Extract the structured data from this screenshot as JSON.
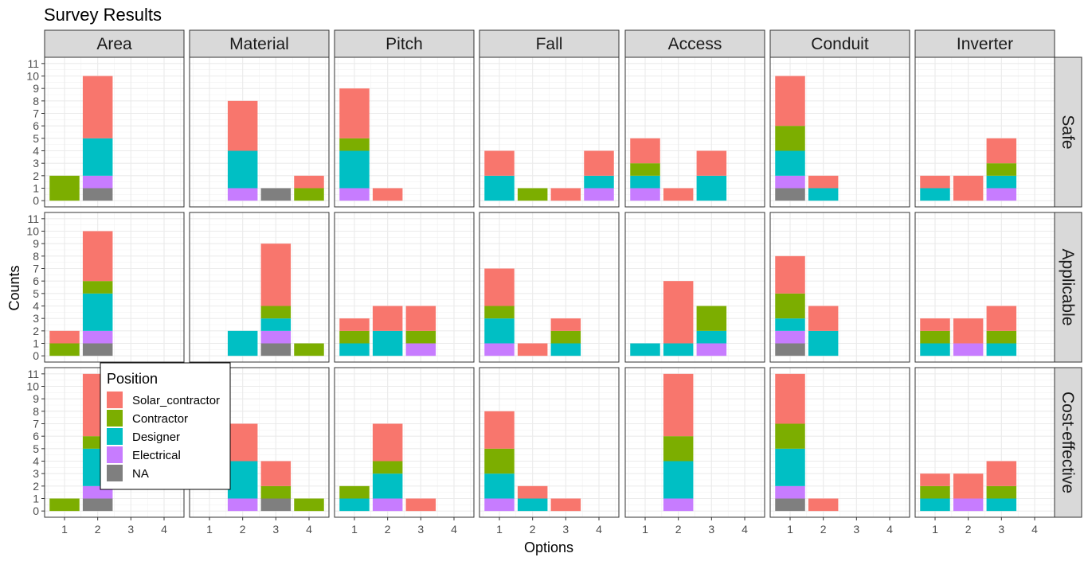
{
  "chart_data": {
    "type": "bar",
    "stacked": true,
    "title": "Survey Results",
    "xlabel": "Options",
    "ylabel": "Counts",
    "x_ticks": [
      "1",
      "2",
      "3",
      "4"
    ],
    "y_ticks": [
      "0",
      "1",
      "2",
      "3",
      "4",
      "5",
      "6",
      "7",
      "8",
      "9",
      "10",
      "11"
    ],
    "ylim": [
      0,
      11.5
    ],
    "grid": true,
    "columns": [
      "Area",
      "Material",
      "Pitch",
      "Fall",
      "Access",
      "Conduit",
      "Inverter"
    ],
    "rows": [
      "Safe",
      "Applicable",
      "Cost-effective"
    ],
    "legend": {
      "title": "Position",
      "placement": "inside-bottom-left",
      "items": [
        {
          "name": "Solar_contractor",
          "color": "#F8766D"
        },
        {
          "name": "Contractor",
          "color": "#7CAE00"
        },
        {
          "name": "Designer",
          "color": "#00BFC4"
        },
        {
          "name": "Electrical",
          "color": "#C77CFF"
        },
        {
          "name": "NA",
          "color": "#7F7F7F"
        }
      ]
    },
    "stack_order_bottom_to_top": [
      "NA",
      "Electrical",
      "Designer",
      "Contractor",
      "Solar_contractor"
    ],
    "panels": {
      "Safe": {
        "Area": [
          {
            "x": 1,
            "NA": 0,
            "Electrical": 0,
            "Designer": 0,
            "Contractor": 2,
            "Solar_contractor": 0
          },
          {
            "x": 2,
            "NA": 1,
            "Electrical": 1,
            "Designer": 3,
            "Contractor": 0,
            "Solar_contractor": 5
          }
        ],
        "Material": [
          {
            "x": 2,
            "NA": 0,
            "Electrical": 1,
            "Designer": 3,
            "Contractor": 0,
            "Solar_contractor": 4
          },
          {
            "x": 3,
            "NA": 1,
            "Electrical": 0,
            "Designer": 0,
            "Contractor": 0,
            "Solar_contractor": 0
          },
          {
            "x": 4,
            "NA": 0,
            "Electrical": 0,
            "Designer": 0,
            "Contractor": 1,
            "Solar_contractor": 1
          }
        ],
        "Pitch": [
          {
            "x": 1,
            "NA": 0,
            "Electrical": 1,
            "Designer": 3,
            "Contractor": 1,
            "Solar_contractor": 4
          },
          {
            "x": 2,
            "NA": 0,
            "Electrical": 0,
            "Designer": 0,
            "Contractor": 0,
            "Solar_contractor": 1
          }
        ],
        "Fall": [
          {
            "x": 1,
            "NA": 0,
            "Electrical": 0,
            "Designer": 2,
            "Contractor": 0,
            "Solar_contractor": 2
          },
          {
            "x": 2,
            "NA": 0,
            "Electrical": 0,
            "Designer": 0,
            "Contractor": 1,
            "Solar_contractor": 0
          },
          {
            "x": 3,
            "NA": 0,
            "Electrical": 0,
            "Designer": 0,
            "Contractor": 0,
            "Solar_contractor": 1
          },
          {
            "x": 4,
            "NA": 0,
            "Electrical": 1,
            "Designer": 1,
            "Contractor": 0,
            "Solar_contractor": 2
          }
        ],
        "Access": [
          {
            "x": 1,
            "NA": 0,
            "Electrical": 1,
            "Designer": 1,
            "Contractor": 1,
            "Solar_contractor": 2
          },
          {
            "x": 2,
            "NA": 0,
            "Electrical": 0,
            "Designer": 0,
            "Contractor": 0,
            "Solar_contractor": 1
          },
          {
            "x": 3,
            "NA": 0,
            "Electrical": 0,
            "Designer": 2,
            "Contractor": 0,
            "Solar_contractor": 2
          }
        ],
        "Conduit": [
          {
            "x": 1,
            "NA": 1,
            "Electrical": 1,
            "Designer": 2,
            "Contractor": 2,
            "Solar_contractor": 4
          },
          {
            "x": 2,
            "NA": 0,
            "Electrical": 0,
            "Designer": 1,
            "Contractor": 0,
            "Solar_contractor": 1
          }
        ],
        "Inverter": [
          {
            "x": 1,
            "NA": 0,
            "Electrical": 0,
            "Designer": 1,
            "Contractor": 0,
            "Solar_contractor": 1
          },
          {
            "x": 2,
            "NA": 0,
            "Electrical": 0,
            "Designer": 0,
            "Contractor": 0,
            "Solar_contractor": 2
          },
          {
            "x": 3,
            "NA": 0,
            "Electrical": 1,
            "Designer": 1,
            "Contractor": 1,
            "Solar_contractor": 2
          }
        ]
      },
      "Applicable": {
        "Area": [
          {
            "x": 1,
            "NA": 0,
            "Electrical": 0,
            "Designer": 0,
            "Contractor": 1,
            "Solar_contractor": 1
          },
          {
            "x": 2,
            "NA": 1,
            "Electrical": 1,
            "Designer": 3,
            "Contractor": 1,
            "Solar_contractor": 4
          }
        ],
        "Material": [
          {
            "x": 2,
            "NA": 0,
            "Electrical": 0,
            "Designer": 2,
            "Contractor": 0,
            "Solar_contractor": 0
          },
          {
            "x": 3,
            "NA": 1,
            "Electrical": 1,
            "Designer": 1,
            "Contractor": 1,
            "Solar_contractor": 5
          },
          {
            "x": 4,
            "NA": 0,
            "Electrical": 0,
            "Designer": 0,
            "Contractor": 1,
            "Solar_contractor": 0
          }
        ],
        "Pitch": [
          {
            "x": 1,
            "NA": 0,
            "Electrical": 0,
            "Designer": 1,
            "Contractor": 1,
            "Solar_contractor": 1
          },
          {
            "x": 2,
            "NA": 0,
            "Electrical": 0,
            "Designer": 2,
            "Contractor": 0,
            "Solar_contractor": 2
          },
          {
            "x": 3,
            "NA": 0,
            "Electrical": 1,
            "Designer": 0,
            "Contractor": 1,
            "Solar_contractor": 2
          }
        ],
        "Fall": [
          {
            "x": 1,
            "NA": 0,
            "Electrical": 1,
            "Designer": 2,
            "Contractor": 1,
            "Solar_contractor": 3
          },
          {
            "x": 2,
            "NA": 0,
            "Electrical": 0,
            "Designer": 0,
            "Contractor": 0,
            "Solar_contractor": 1
          },
          {
            "x": 3,
            "NA": 0,
            "Electrical": 0,
            "Designer": 1,
            "Contractor": 1,
            "Solar_contractor": 1
          }
        ],
        "Access": [
          {
            "x": 1,
            "NA": 0,
            "Electrical": 0,
            "Designer": 1,
            "Contractor": 0,
            "Solar_contractor": 0
          },
          {
            "x": 2,
            "NA": 0,
            "Electrical": 0,
            "Designer": 1,
            "Contractor": 0,
            "Solar_contractor": 5
          },
          {
            "x": 3,
            "NA": 0,
            "Electrical": 1,
            "Designer": 1,
            "Contractor": 2,
            "Solar_contractor": 0
          }
        ],
        "Conduit": [
          {
            "x": 1,
            "NA": 1,
            "Electrical": 1,
            "Designer": 1,
            "Contractor": 2,
            "Solar_contractor": 3
          },
          {
            "x": 2,
            "NA": 0,
            "Electrical": 0,
            "Designer": 2,
            "Contractor": 0,
            "Solar_contractor": 2
          }
        ],
        "Inverter": [
          {
            "x": 1,
            "NA": 0,
            "Electrical": 0,
            "Designer": 1,
            "Contractor": 1,
            "Solar_contractor": 1
          },
          {
            "x": 2,
            "NA": 0,
            "Electrical": 1,
            "Designer": 0,
            "Contractor": 0,
            "Solar_contractor": 2
          },
          {
            "x": 3,
            "NA": 0,
            "Electrical": 0,
            "Designer": 1,
            "Contractor": 1,
            "Solar_contractor": 2
          }
        ]
      },
      "Cost-effective": {
        "Area": [
          {
            "x": 1,
            "NA": 0,
            "Electrical": 0,
            "Designer": 0,
            "Contractor": 1,
            "Solar_contractor": 0
          },
          {
            "x": 2,
            "NA": 1,
            "Electrical": 1,
            "Designer": 3,
            "Contractor": 1,
            "Solar_contractor": 5
          }
        ],
        "Material": [
          {
            "x": 2,
            "NA": 0,
            "Electrical": 1,
            "Designer": 3,
            "Contractor": 0,
            "Solar_contractor": 3
          },
          {
            "x": 3,
            "NA": 1,
            "Electrical": 0,
            "Designer": 0,
            "Contractor": 1,
            "Solar_contractor": 2
          },
          {
            "x": 4,
            "NA": 0,
            "Electrical": 0,
            "Designer": 0,
            "Contractor": 1,
            "Solar_contractor": 0
          }
        ],
        "Pitch": [
          {
            "x": 1,
            "NA": 0,
            "Electrical": 0,
            "Designer": 1,
            "Contractor": 1,
            "Solar_contractor": 0
          },
          {
            "x": 2,
            "NA": 0,
            "Electrical": 1,
            "Designer": 2,
            "Contractor": 1,
            "Solar_contractor": 3
          },
          {
            "x": 3,
            "NA": 0,
            "Electrical": 0,
            "Designer": 0,
            "Contractor": 0,
            "Solar_contractor": 1
          }
        ],
        "Fall": [
          {
            "x": 1,
            "NA": 0,
            "Electrical": 1,
            "Designer": 2,
            "Contractor": 2,
            "Solar_contractor": 3
          },
          {
            "x": 2,
            "NA": 0,
            "Electrical": 0,
            "Designer": 1,
            "Contractor": 0,
            "Solar_contractor": 1
          },
          {
            "x": 3,
            "NA": 0,
            "Electrical": 0,
            "Designer": 0,
            "Contractor": 0,
            "Solar_contractor": 1
          }
        ],
        "Access": [
          {
            "x": 2,
            "NA": 0,
            "Electrical": 1,
            "Designer": 3,
            "Contractor": 2,
            "Solar_contractor": 5
          }
        ],
        "Conduit": [
          {
            "x": 1,
            "NA": 1,
            "Electrical": 1,
            "Designer": 3,
            "Contractor": 2,
            "Solar_contractor": 4
          },
          {
            "x": 2,
            "NA": 0,
            "Electrical": 0,
            "Designer": 0,
            "Contractor": 0,
            "Solar_contractor": 1
          }
        ],
        "Inverter": [
          {
            "x": 1,
            "NA": 0,
            "Electrical": 0,
            "Designer": 1,
            "Contractor": 1,
            "Solar_contractor": 1
          },
          {
            "x": 2,
            "NA": 0,
            "Electrical": 1,
            "Designer": 0,
            "Contractor": 0,
            "Solar_contractor": 2
          },
          {
            "x": 3,
            "NA": 0,
            "Electrical": 0,
            "Designer": 1,
            "Contractor": 1,
            "Solar_contractor": 2
          }
        ]
      }
    }
  }
}
